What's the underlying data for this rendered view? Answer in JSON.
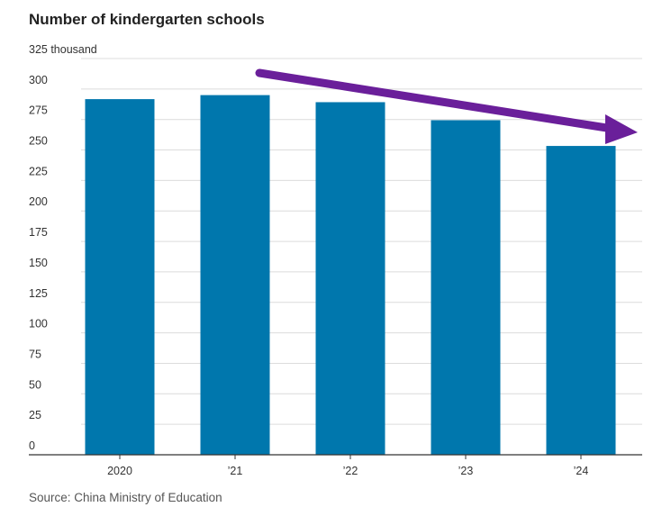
{
  "chart_data": {
    "type": "bar",
    "title": "Number of kindergarten schools",
    "categories": [
      "2020",
      "’21",
      "’22",
      "’23",
      "’24"
    ],
    "values": [
      291.7,
      295.0,
      289.2,
      274.4,
      253.3
    ],
    "unit": "thousand",
    "ylim": [
      0,
      325
    ],
    "yticks": [
      0,
      25,
      50,
      75,
      100,
      125,
      150,
      175,
      200,
      225,
      250,
      275,
      300,
      325
    ],
    "top_tick_label": "325 thousand",
    "grid": true,
    "bar_color": "#0077ad",
    "trend_arrow_color": "#6a1f9a",
    "source": "Source: China Ministry of Education"
  }
}
